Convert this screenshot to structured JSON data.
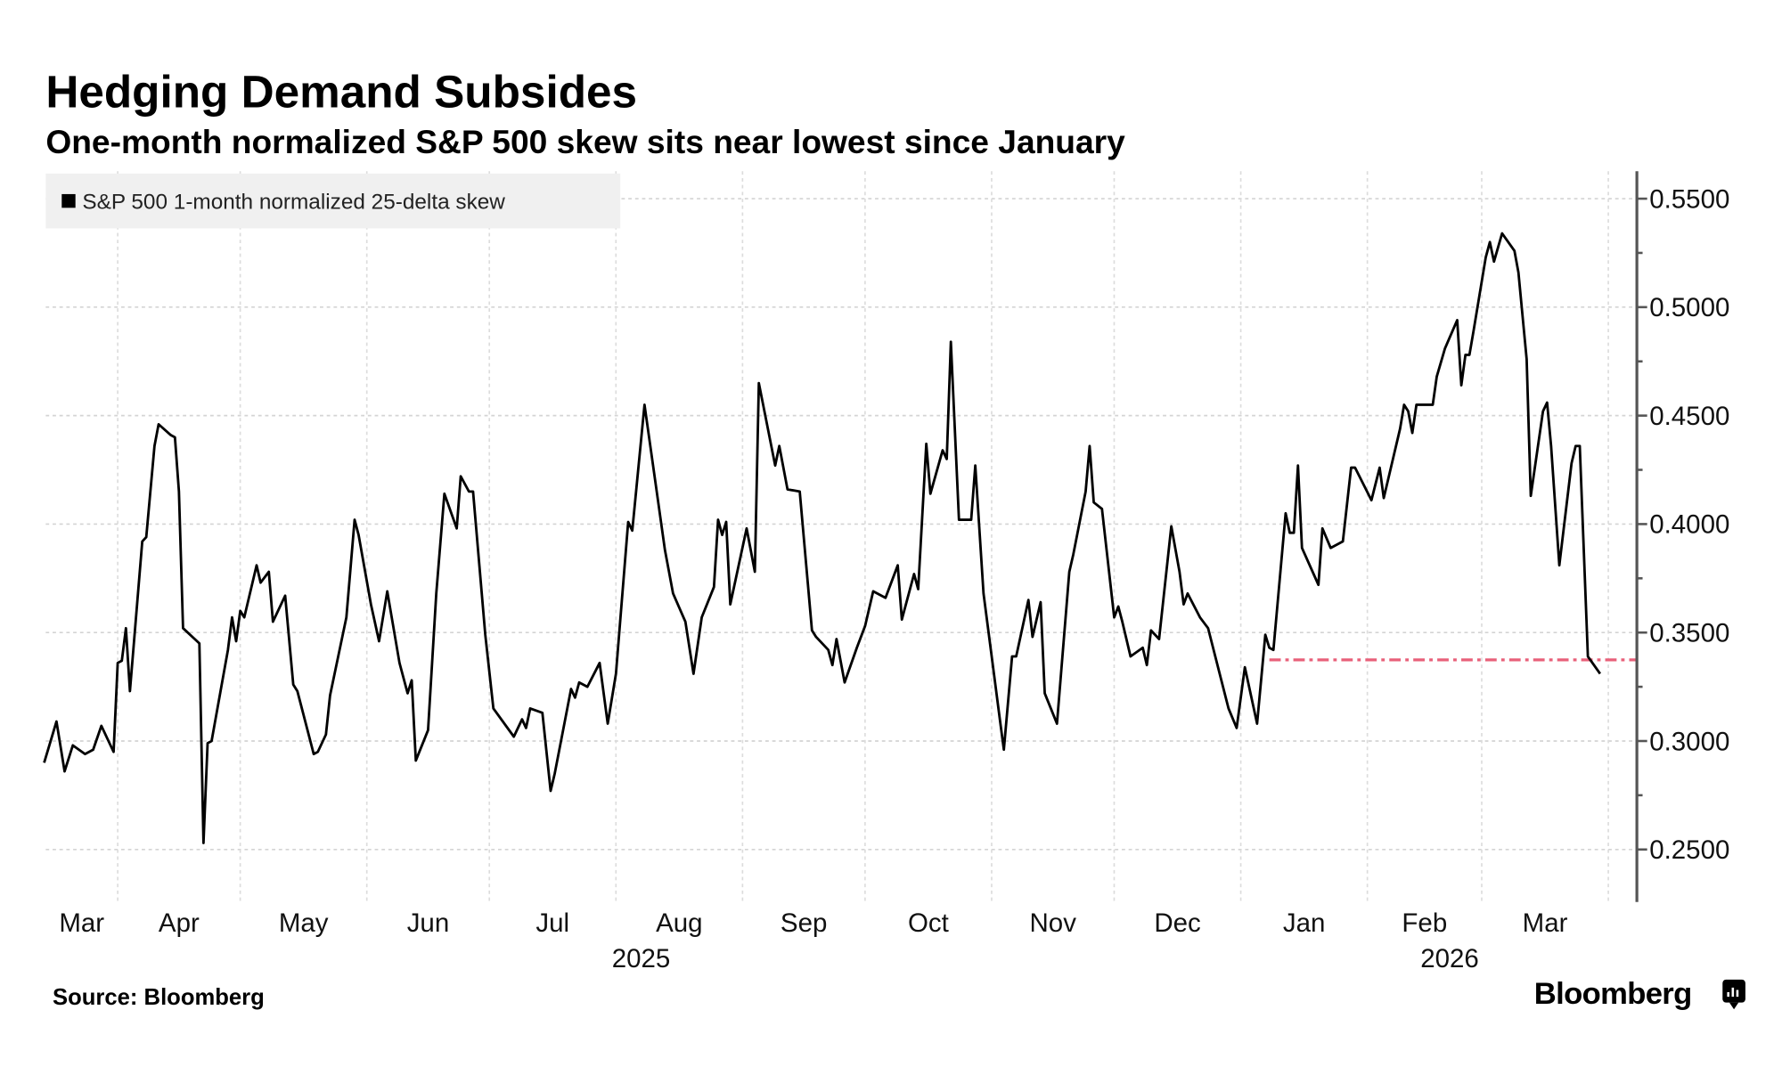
{
  "title": "Hedging Demand Subsides",
  "subtitle": "One-month normalized S&P 500 skew sits near lowest since January",
  "source": "Source: Bloomberg",
  "logo": "Bloomberg",
  "chart_data": {
    "type": "line",
    "title": "Hedging Demand Subsides",
    "subtitle": "One-month normalized S&P 500 skew sits near lowest since January",
    "legend": {
      "placement": "top-left",
      "entries": [
        "S&P 500 1-month normalized 25-delta skew"
      ]
    },
    "y_axis": {
      "side": "right",
      "ylim": [
        0.23,
        0.56
      ],
      "ticks": [
        "0.2500",
        "0.3000",
        "0.3500",
        "0.4000",
        "0.4500",
        "0.5000",
        "0.5500"
      ],
      "tick_values": [
        0.25,
        0.3,
        0.35,
        0.4,
        0.45,
        0.5,
        0.55
      ]
    },
    "x_axis": {
      "month_labels": [
        "Mar",
        "Apr",
        "May",
        "Jun",
        "Jul",
        "Aug",
        "Sep",
        "Oct",
        "Nov",
        "Dec",
        "Jan",
        "Feb",
        "Mar"
      ],
      "year_labels": [
        "2025",
        "2026"
      ]
    },
    "grid": true,
    "colors": {
      "series": "#000000",
      "reference_line": "#e8607a",
      "legend_bg": "#f0f0f0",
      "axis": "#555555"
    },
    "reference_line": {
      "value": 0.3374,
      "from": "2026-01-08",
      "style": "dash-dot"
    },
    "series": [
      {
        "name": "S&P 500 1-month normalized 25-delta skew",
        "points": [
          [
            "2025-03-14",
            0.29
          ],
          [
            "2025-03-17",
            0.309
          ],
          [
            "2025-03-19",
            0.286
          ],
          [
            "2025-03-21",
            0.298
          ],
          [
            "2025-03-24",
            0.294
          ],
          [
            "2025-03-26",
            0.296
          ],
          [
            "2025-03-28",
            0.307
          ],
          [
            "2025-03-31",
            0.295
          ],
          [
            "2025-04-01",
            0.336
          ],
          [
            "2025-04-02",
            0.337
          ],
          [
            "2025-04-03",
            0.352
          ],
          [
            "2025-04-04",
            0.323
          ],
          [
            "2025-04-07",
            0.392
          ],
          [
            "2025-04-08",
            0.394
          ],
          [
            "2025-04-10",
            0.436
          ],
          [
            "2025-04-11",
            0.446
          ],
          [
            "2025-04-14",
            0.441
          ],
          [
            "2025-04-15",
            0.44
          ],
          [
            "2025-04-16",
            0.415
          ],
          [
            "2025-04-17",
            0.352
          ],
          [
            "2025-04-21",
            0.345
          ],
          [
            "2025-04-22",
            0.253
          ],
          [
            "2025-04-23",
            0.299
          ],
          [
            "2025-04-24",
            0.3
          ],
          [
            "2025-04-28",
            0.342
          ],
          [
            "2025-04-29",
            0.357
          ],
          [
            "2025-04-30",
            0.346
          ],
          [
            "2025-05-01",
            0.36
          ],
          [
            "2025-05-02",
            0.357
          ],
          [
            "2025-05-05",
            0.381
          ],
          [
            "2025-05-06",
            0.373
          ],
          [
            "2025-05-08",
            0.378
          ],
          [
            "2025-05-09",
            0.355
          ],
          [
            "2025-05-12",
            0.367
          ],
          [
            "2025-05-14",
            0.326
          ],
          [
            "2025-05-15",
            0.323
          ],
          [
            "2025-05-19",
            0.294
          ],
          [
            "2025-05-20",
            0.295
          ],
          [
            "2025-05-22",
            0.303
          ],
          [
            "2025-05-23",
            0.321
          ],
          [
            "2025-05-27",
            0.357
          ],
          [
            "2025-05-29",
            0.402
          ],
          [
            "2025-05-30",
            0.395
          ],
          [
            "2025-06-02",
            0.363
          ],
          [
            "2025-06-04",
            0.346
          ],
          [
            "2025-06-06",
            0.369
          ],
          [
            "2025-06-09",
            0.336
          ],
          [
            "2025-06-11",
            0.322
          ],
          [
            "2025-06-12",
            0.328
          ],
          [
            "2025-06-13",
            0.291
          ],
          [
            "2025-06-16",
            0.305
          ],
          [
            "2025-06-18",
            0.368
          ],
          [
            "2025-06-20",
            0.414
          ],
          [
            "2025-06-23",
            0.398
          ],
          [
            "2025-06-24",
            0.422
          ],
          [
            "2025-06-26",
            0.415
          ],
          [
            "2025-06-27",
            0.415
          ],
          [
            "2025-06-30",
            0.349
          ],
          [
            "2025-07-02",
            0.315
          ],
          [
            "2025-07-07",
            0.302
          ],
          [
            "2025-07-09",
            0.31
          ],
          [
            "2025-07-10",
            0.306
          ],
          [
            "2025-07-11",
            0.315
          ],
          [
            "2025-07-14",
            0.313
          ],
          [
            "2025-07-16",
            0.277
          ],
          [
            "2025-07-17",
            0.285
          ],
          [
            "2025-07-21",
            0.324
          ],
          [
            "2025-07-22",
            0.32
          ],
          [
            "2025-07-23",
            0.327
          ],
          [
            "2025-07-25",
            0.325
          ],
          [
            "2025-07-28",
            0.336
          ],
          [
            "2025-07-30",
            0.308
          ],
          [
            "2025-08-01",
            0.331
          ],
          [
            "2025-08-04",
            0.401
          ],
          [
            "2025-08-05",
            0.397
          ],
          [
            "2025-08-08",
            0.455
          ],
          [
            "2025-08-11",
            0.415
          ],
          [
            "2025-08-13",
            0.388
          ],
          [
            "2025-08-15",
            0.368
          ],
          [
            "2025-08-18",
            0.355
          ],
          [
            "2025-08-20",
            0.331
          ],
          [
            "2025-08-22",
            0.357
          ],
          [
            "2025-08-25",
            0.371
          ],
          [
            "2025-08-26",
            0.402
          ],
          [
            "2025-08-27",
            0.395
          ],
          [
            "2025-08-28",
            0.401
          ],
          [
            "2025-08-29",
            0.363
          ],
          [
            "2025-09-02",
            0.398
          ],
          [
            "2025-09-04",
            0.378
          ],
          [
            "2025-09-05",
            0.465
          ],
          [
            "2025-09-09",
            0.427
          ],
          [
            "2025-09-10",
            0.436
          ],
          [
            "2025-09-12",
            0.416
          ],
          [
            "2025-09-15",
            0.415
          ],
          [
            "2025-09-18",
            0.351
          ],
          [
            "2025-09-19",
            0.348
          ],
          [
            "2025-09-22",
            0.342
          ],
          [
            "2025-09-23",
            0.335
          ],
          [
            "2025-09-24",
            0.347
          ],
          [
            "2025-09-26",
            0.327
          ],
          [
            "2025-09-29",
            0.343
          ],
          [
            "2025-10-01",
            0.353
          ],
          [
            "2025-10-03",
            0.369
          ],
          [
            "2025-10-06",
            0.366
          ],
          [
            "2025-10-09",
            0.381
          ],
          [
            "2025-10-10",
            0.356
          ],
          [
            "2025-10-13",
            0.377
          ],
          [
            "2025-10-14",
            0.37
          ],
          [
            "2025-10-16",
            0.437
          ],
          [
            "2025-10-17",
            0.414
          ],
          [
            "2025-10-20",
            0.434
          ],
          [
            "2025-10-21",
            0.43
          ],
          [
            "2025-10-22",
            0.484
          ],
          [
            "2025-10-24",
            0.402
          ],
          [
            "2025-10-27",
            0.402
          ],
          [
            "2025-10-28",
            0.427
          ],
          [
            "2025-10-30",
            0.368
          ],
          [
            "2025-11-03",
            0.31
          ],
          [
            "2025-11-04",
            0.296
          ],
          [
            "2025-11-06",
            0.339
          ],
          [
            "2025-11-07",
            0.339
          ],
          [
            "2025-11-10",
            0.365
          ],
          [
            "2025-11-11",
            0.348
          ],
          [
            "2025-11-13",
            0.364
          ],
          [
            "2025-11-14",
            0.322
          ],
          [
            "2025-11-17",
            0.308
          ],
          [
            "2025-11-20",
            0.378
          ],
          [
            "2025-11-21",
            0.386
          ],
          [
            "2025-11-24",
            0.415
          ],
          [
            "2025-11-25",
            0.436
          ],
          [
            "2025-11-26",
            0.41
          ],
          [
            "2025-11-28",
            0.407
          ],
          [
            "2025-12-01",
            0.357
          ],
          [
            "2025-12-02",
            0.362
          ],
          [
            "2025-12-03",
            0.355
          ],
          [
            "2025-12-05",
            0.339
          ],
          [
            "2025-12-08",
            0.343
          ],
          [
            "2025-12-09",
            0.335
          ],
          [
            "2025-12-10",
            0.351
          ],
          [
            "2025-12-12",
            0.347
          ],
          [
            "2025-12-15",
            0.399
          ],
          [
            "2025-12-17",
            0.378
          ],
          [
            "2025-12-18",
            0.363
          ],
          [
            "2025-12-19",
            0.368
          ],
          [
            "2025-12-22",
            0.357
          ],
          [
            "2025-12-24",
            0.352
          ],
          [
            "2025-12-29",
            0.315
          ],
          [
            "2025-12-31",
            0.306
          ],
          [
            "2026-01-02",
            0.334
          ],
          [
            "2026-01-05",
            0.308
          ],
          [
            "2026-01-07",
            0.349
          ],
          [
            "2026-01-08",
            0.343
          ],
          [
            "2026-01-09",
            0.342
          ],
          [
            "2026-01-12",
            0.405
          ],
          [
            "2026-01-13",
            0.396
          ],
          [
            "2026-01-14",
            0.396
          ],
          [
            "2026-01-15",
            0.427
          ],
          [
            "2026-01-16",
            0.389
          ],
          [
            "2026-01-20",
            0.372
          ],
          [
            "2026-01-21",
            0.398
          ],
          [
            "2026-01-23",
            0.389
          ],
          [
            "2026-01-26",
            0.392
          ],
          [
            "2026-01-28",
            0.426
          ],
          [
            "2026-01-29",
            0.426
          ],
          [
            "2026-02-02",
            0.411
          ],
          [
            "2026-02-04",
            0.426
          ],
          [
            "2026-02-05",
            0.412
          ],
          [
            "2026-02-09",
            0.444
          ],
          [
            "2026-02-10",
            0.455
          ],
          [
            "2026-02-11",
            0.452
          ],
          [
            "2026-02-12",
            0.442
          ],
          [
            "2026-02-13",
            0.455
          ],
          [
            "2026-02-17",
            0.455
          ],
          [
            "2026-02-18",
            0.468
          ],
          [
            "2026-02-20",
            0.481
          ],
          [
            "2026-02-23",
            0.494
          ],
          [
            "2026-02-24",
            0.464
          ],
          [
            "2026-02-25",
            0.478
          ],
          [
            "2026-02-26",
            0.478
          ],
          [
            "2026-02-27",
            0.489
          ],
          [
            "2026-03-02",
            0.523
          ],
          [
            "2026-03-03",
            0.53
          ],
          [
            "2026-03-04",
            0.521
          ],
          [
            "2026-03-06",
            0.534
          ],
          [
            "2026-03-09",
            0.526
          ],
          [
            "2026-03-10",
            0.516
          ],
          [
            "2026-03-12",
            0.476
          ],
          [
            "2026-03-13",
            0.413
          ],
          [
            "2026-03-16",
            0.452
          ],
          [
            "2026-03-17",
            0.456
          ],
          [
            "2026-03-18",
            0.436
          ],
          [
            "2026-03-20",
            0.381
          ],
          [
            "2026-03-23",
            0.428
          ],
          [
            "2026-03-24",
            0.436
          ],
          [
            "2026-03-25",
            0.436
          ],
          [
            "2026-03-27",
            0.339
          ],
          [
            "2026-03-30",
            0.331
          ]
        ]
      }
    ]
  }
}
